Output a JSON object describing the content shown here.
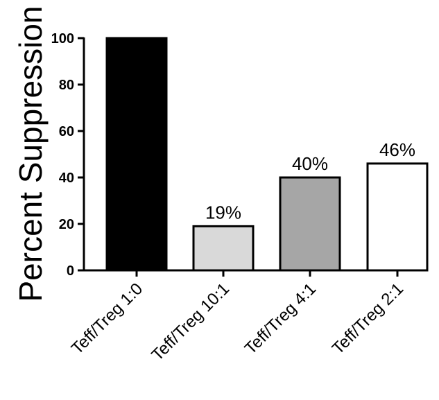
{
  "chart_data": {
    "type": "bar",
    "ylabel": "Percent Suppression",
    "xlabel": "",
    "title": "",
    "ylim": [
      0,
      100
    ],
    "yticks": [
      "0",
      "20",
      "40",
      "60",
      "80",
      "100"
    ],
    "categories": [
      "Teff/Treg 1:0",
      "Teff/Treg 10:1",
      "Teff/Treg 4:1",
      "Teff/Treg 2:1"
    ],
    "values": [
      100,
      19,
      40,
      46
    ],
    "data_labels": [
      "",
      "19%",
      "40%",
      "46%"
    ],
    "bar_colors": [
      "#000000",
      "#d9d9d9",
      "#a6a6a6",
      "#ffffff"
    ],
    "bar_outline": "#000000",
    "grid": false,
    "legend": "none"
  }
}
